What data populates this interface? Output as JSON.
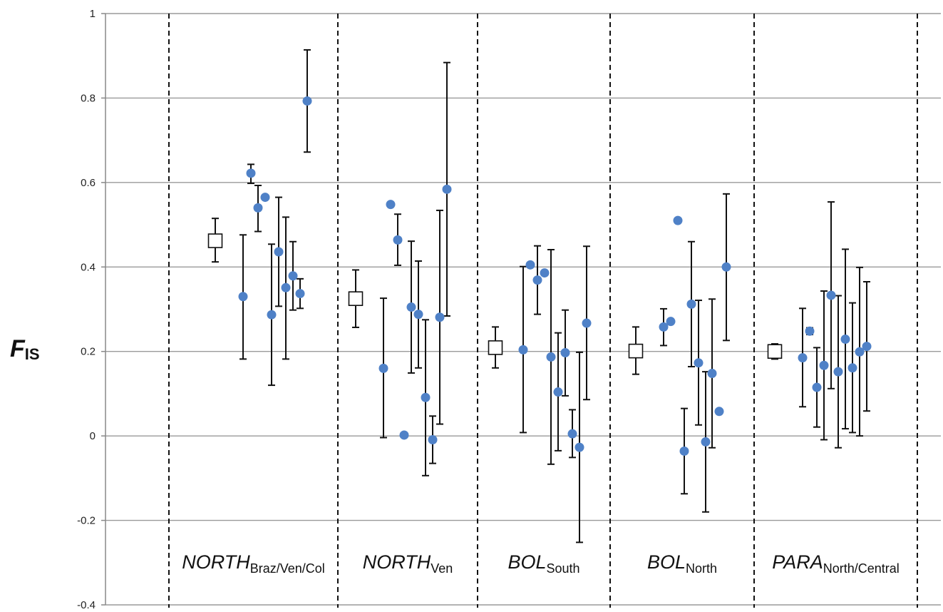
{
  "chart_data": {
    "type": "scatter",
    "ylabel_main": "F",
    "ylabel_sub": "IS",
    "ylim": [
      -0.4,
      1
    ],
    "yticks": [
      {
        "value": 1,
        "label": "1"
      },
      {
        "value": 0.8,
        "label": "0.8"
      },
      {
        "value": 0.6,
        "label": "0.6"
      },
      {
        "value": 0.4,
        "label": "0.4"
      },
      {
        "value": 0.2,
        "label": "0.2"
      },
      {
        "value": 0,
        "label": "0"
      },
      {
        "value": -0.2,
        "label": "-0.2"
      },
      {
        "value": -0.4,
        "label": "-0.4"
      }
    ],
    "grid": true,
    "colors": {
      "point": "#4f81c7",
      "errorbar": "#111111",
      "grid": "#9a9a9a",
      "divider": "#111111"
    },
    "groups": [
      {
        "main": "NORTH",
        "sub": "Braz/Ven/Col",
        "mean": {
          "value": 0.462,
          "low": 0.412,
          "high": 0.515
        },
        "points": [
          {
            "value": 0.33,
            "low": 0.182,
            "high": 0.476
          },
          {
            "value": 0.622,
            "low": 0.598,
            "high": 0.643
          },
          {
            "value": 0.54,
            "low": 0.484,
            "high": 0.593
          },
          {
            "value": 0.565,
            "low": null,
            "high": null
          },
          {
            "value": 0.287,
            "low": 0.12,
            "high": 0.454
          },
          {
            "value": 0.436,
            "low": 0.307,
            "high": 0.565
          },
          {
            "value": 0.351,
            "low": 0.182,
            "high": 0.518
          },
          {
            "value": 0.379,
            "low": 0.298,
            "high": 0.46
          },
          {
            "value": 0.337,
            "low": 0.302,
            "high": 0.372
          },
          {
            "value": 0.793,
            "low": 0.672,
            "high": 0.914
          }
        ]
      },
      {
        "main": "NORTH",
        "sub": "Ven",
        "mean": {
          "value": 0.325,
          "low": 0.257,
          "high": 0.393
        },
        "points": [
          {
            "value": 0.16,
            "low": -0.004,
            "high": 0.326
          },
          {
            "value": 0.548,
            "low": null,
            "high": null
          },
          {
            "value": 0.464,
            "low": 0.404,
            "high": 0.525
          },
          {
            "value": 0.002,
            "low": null,
            "high": null
          },
          {
            "value": 0.305,
            "low": 0.149,
            "high": 0.461
          },
          {
            "value": 0.288,
            "low": 0.161,
            "high": 0.414
          },
          {
            "value": 0.091,
            "low": -0.094,
            "high": 0.275
          },
          {
            "value": -0.009,
            "low": -0.065,
            "high": 0.047
          },
          {
            "value": 0.281,
            "low": 0.028,
            "high": 0.534
          },
          {
            "value": 0.584,
            "low": 0.284,
            "high": 0.884
          }
        ]
      },
      {
        "main": "BOL",
        "sub": "South",
        "mean": {
          "value": 0.209,
          "low": 0.161,
          "high": 0.258
        },
        "points": [
          {
            "value": 0.204,
            "low": 0.008,
            "high": 0.401
          },
          {
            "value": 0.405,
            "low": null,
            "high": null
          },
          {
            "value": 0.369,
            "low": 0.288,
            "high": 0.45
          },
          {
            "value": 0.386,
            "low": null,
            "high": null
          },
          {
            "value": 0.187,
            "low": -0.067,
            "high": 0.441
          },
          {
            "value": 0.104,
            "low": -0.035,
            "high": 0.244
          },
          {
            "value": 0.197,
            "low": 0.095,
            "high": 0.298
          },
          {
            "value": 0.005,
            "low": -0.051,
            "high": 0.062
          },
          {
            "value": -0.027,
            "low": -0.252,
            "high": 0.198
          },
          {
            "value": 0.267,
            "low": 0.086,
            "high": 0.449
          }
        ]
      },
      {
        "main": "BOL",
        "sub": "North",
        "mean": {
          "value": 0.201,
          "low": 0.146,
          "high": 0.258
        },
        "points": [
          {
            "value": 0.258,
            "low": 0.214,
            "high": 0.301
          },
          {
            "value": 0.271,
            "low": null,
            "high": null
          },
          {
            "value": 0.51,
            "low": null,
            "high": null
          },
          {
            "value": -0.036,
            "low": -0.137,
            "high": 0.065
          },
          {
            "value": 0.312,
            "low": 0.164,
            "high": 0.46
          },
          {
            "value": 0.173,
            "low": 0.026,
            "high": 0.321
          },
          {
            "value": -0.014,
            "low": -0.18,
            "high": 0.152
          },
          {
            "value": 0.148,
            "low": -0.028,
            "high": 0.324
          },
          {
            "value": 0.058,
            "low": null,
            "high": null
          },
          {
            "value": 0.4,
            "low": 0.226,
            "high": 0.573
          }
        ]
      },
      {
        "main": "PARA",
        "sub": "North/Central",
        "mean": {
          "value": 0.2,
          "low": 0.182,
          "high": 0.218
        },
        "points": [
          {
            "value": 0.185,
            "low": 0.069,
            "high": 0.302
          },
          {
            "value": 0.248,
            "low": 0.24,
            "high": 0.256
          },
          {
            "value": 0.115,
            "low": 0.021,
            "high": 0.209
          },
          {
            "value": 0.167,
            "low": -0.009,
            "high": 0.343
          },
          {
            "value": 0.333,
            "low": 0.112,
            "high": 0.554
          },
          {
            "value": 0.152,
            "low": -0.028,
            "high": 0.332
          },
          {
            "value": 0.229,
            "low": 0.017,
            "high": 0.442
          },
          {
            "value": 0.161,
            "low": 0.008,
            "high": 0.315
          },
          {
            "value": 0.199,
            "low": 0.0,
            "high": 0.399
          },
          {
            "value": 0.212,
            "low": 0.059,
            "high": 0.365
          }
        ]
      }
    ]
  }
}
